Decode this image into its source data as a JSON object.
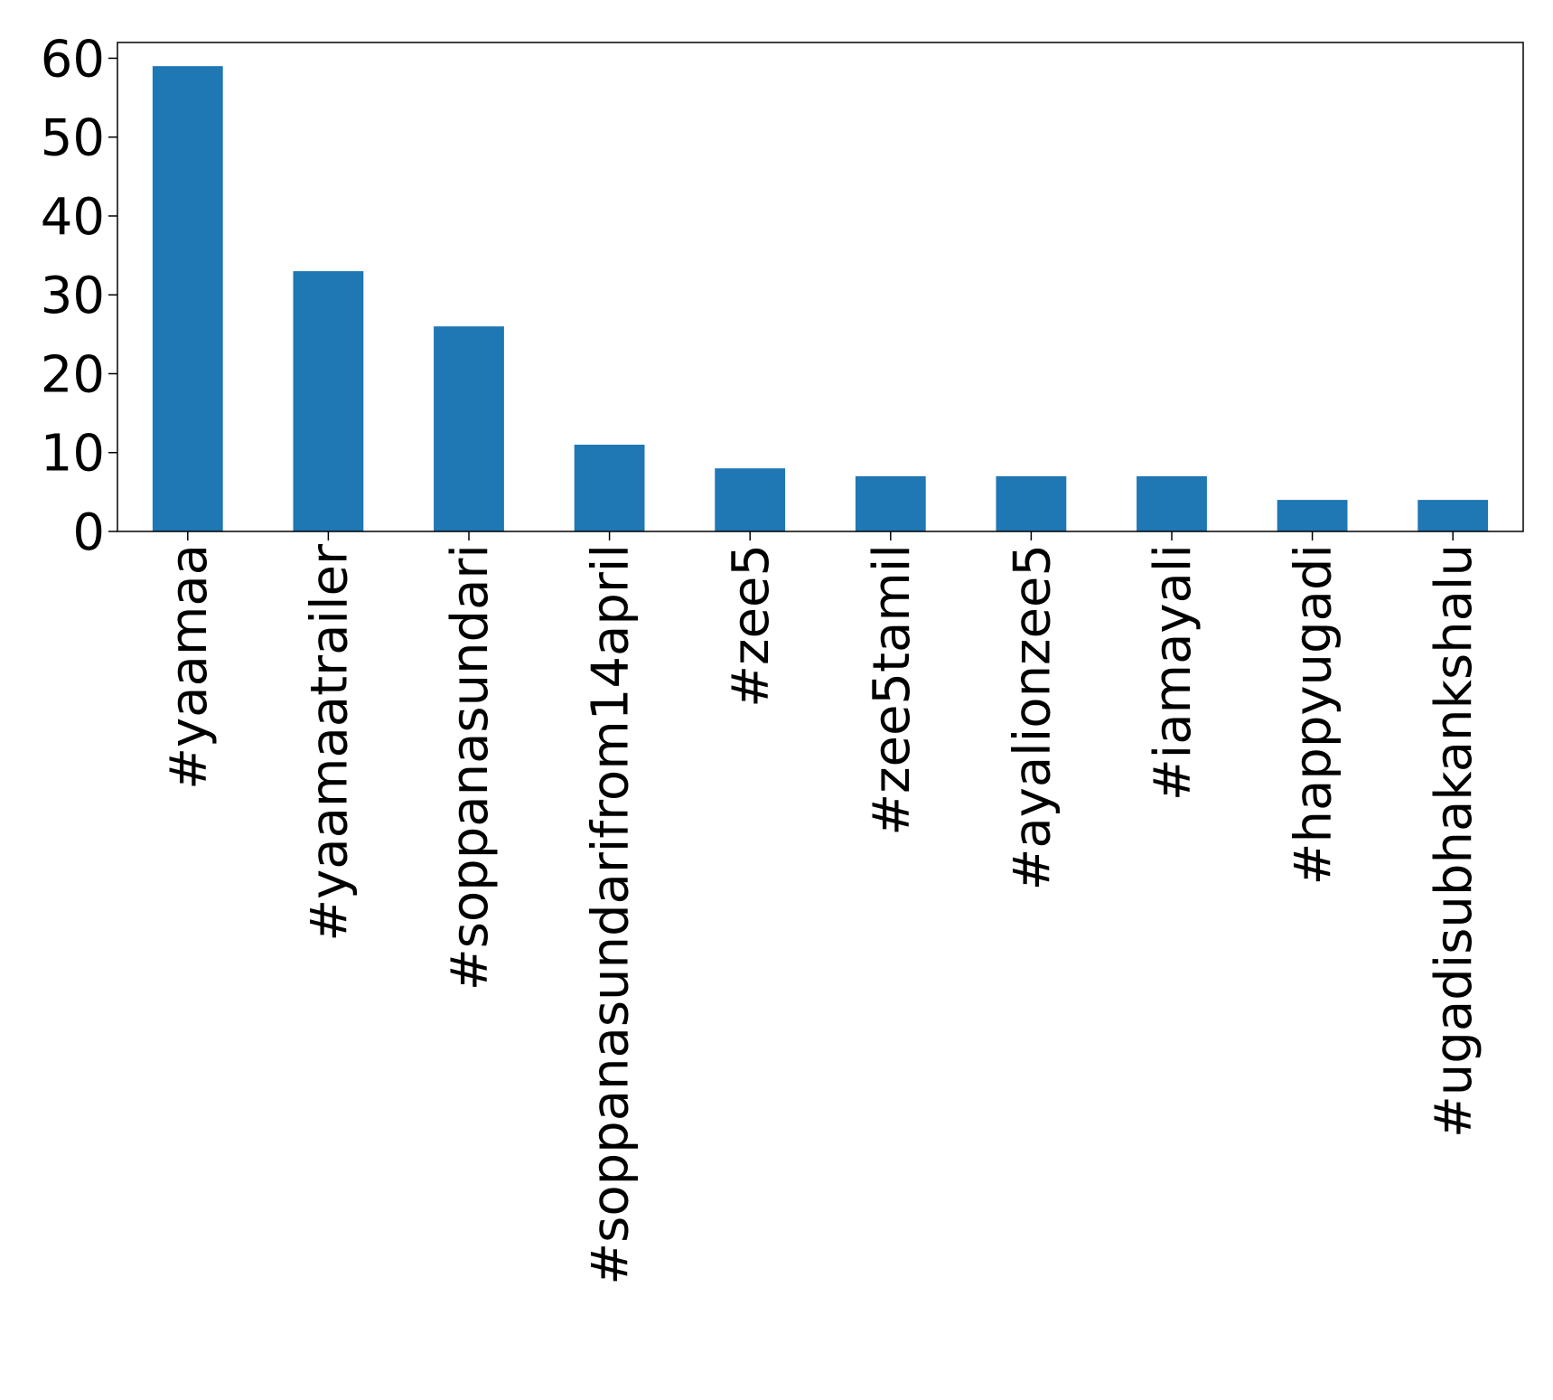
{
  "chart_data": {
    "type": "bar",
    "title": "",
    "xlabel": "",
    "ylabel": "",
    "categories": [
      "#yaamaa",
      "#yaamaatrailer",
      "#soppanasundari",
      "#soppanasundarifrom14april",
      "#zee5",
      "#zee5tamil",
      "#ayalionzee5",
      "#iamayali",
      "#happyugadi",
      "#ugadisubhakankshalu"
    ],
    "values": [
      59,
      33,
      26,
      11,
      8,
      7,
      7,
      7,
      4,
      4
    ],
    "ylim": [
      0,
      62
    ],
    "yticks": [
      0,
      10,
      20,
      30,
      40,
      50,
      60
    ],
    "ytick_labels": [
      "0",
      "10",
      "20",
      "30",
      "40",
      "50",
      "60"
    ],
    "bar_color": "#1f77b4",
    "grid": false,
    "legend": "none"
  }
}
